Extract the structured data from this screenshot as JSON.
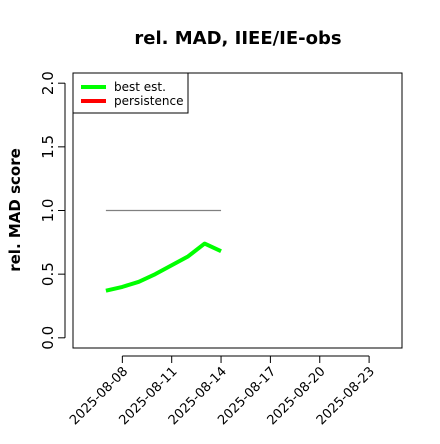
{
  "chart_data": {
    "type": "line",
    "title": "rel. MAD, IIEE/IE-obs",
    "ylabel": "rel. MAD score",
    "x": [
      "2025-08-07",
      "2025-08-08",
      "2025-08-09",
      "2025-08-10",
      "2025-08-11",
      "2025-08-12",
      "2025-08-13",
      "2025-08-14"
    ],
    "series": [
      {
        "name": "best est.",
        "color": "#00ff00",
        "values": [
          0.37,
          0.4,
          0.44,
          0.5,
          0.57,
          0.64,
          0.74,
          0.68
        ]
      },
      {
        "name": "persistence",
        "color": "#ff0000",
        "values": [
          null,
          null,
          null,
          null,
          null,
          null,
          null,
          null
        ]
      }
    ],
    "reference_line": {
      "x": [
        "2025-08-07",
        "2025-08-14"
      ],
      "values": [
        1.0,
        1.0
      ],
      "color": "#808080"
    },
    "xlim": [
      "2025-08-05",
      "2025-08-25"
    ],
    "xticks": [
      "2025-08-08",
      "2025-08-11",
      "2025-08-14",
      "2025-08-17",
      "2025-08-20",
      "2025-08-23"
    ],
    "ylim": [
      -0.08,
      2.08
    ],
    "yticks": [
      {
        "value": 0,
        "label": "0.0"
      },
      {
        "value": 0.5,
        "label": "0.5"
      },
      {
        "value": 1,
        "label": "1.0"
      },
      {
        "value": 1.5,
        "label": "1.5"
      },
      {
        "value": 2,
        "label": "2.0"
      }
    ],
    "legend": "top-left"
  }
}
